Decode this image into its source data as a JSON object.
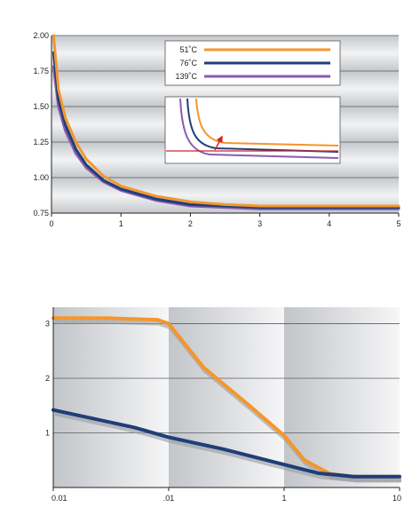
{
  "chart_data": [
    {
      "type": "line",
      "title": "",
      "xlabel": "",
      "ylabel": "",
      "xlim": [
        0,
        5
      ],
      "ylim": [
        0.75,
        2.0
      ],
      "x_ticks": [
        "0",
        "1",
        "2",
        "3",
        "4",
        "5"
      ],
      "y_ticks": [
        "2.00",
        "1.75",
        "1.50",
        "1.25",
        "1.00",
        "0.75"
      ],
      "legend_placement": "top-right",
      "grid": true,
      "series": [
        {
          "name": "51˚C",
          "color": "#F5962A",
          "x": [
            0.03,
            0.1,
            0.2,
            0.35,
            0.5,
            0.75,
            1.0,
            1.5,
            2.0,
            2.5,
            3.0,
            4.0,
            5.0
          ],
          "y": [
            2.0,
            1.62,
            1.42,
            1.25,
            1.13,
            1.01,
            0.94,
            0.87,
            0.83,
            0.81,
            0.8,
            0.8,
            0.8
          ]
        },
        {
          "name": "76˚C",
          "color": "#1F3F7A",
          "x": [
            0.03,
            0.1,
            0.2,
            0.35,
            0.5,
            0.75,
            1.0,
            1.5,
            2.0,
            2.5,
            3.0,
            4.0,
            5.0
          ],
          "y": [
            1.88,
            1.55,
            1.37,
            1.2,
            1.09,
            0.98,
            0.92,
            0.85,
            0.81,
            0.8,
            0.79,
            0.79,
            0.79
          ]
        },
        {
          "name": "139˚C",
          "color": "#8A5BB0",
          "x": [
            0.03,
            0.1,
            0.2,
            0.35,
            0.5,
            0.75,
            1.0,
            1.5,
            2.0,
            2.5,
            3.0,
            4.0,
            5.0
          ],
          "y": [
            1.78,
            1.5,
            1.33,
            1.17,
            1.07,
            0.97,
            0.91,
            0.84,
            0.8,
            0.79,
            0.78,
            0.78,
            0.78
          ]
        }
      ],
      "inset": {
        "placement": "top-right",
        "colors": {
          "reference_line": "#D0252A",
          "arrow": "#D0252A"
        }
      }
    },
    {
      "type": "line",
      "title": "",
      "xlabel": "",
      "ylabel": "",
      "x_scale": "log",
      "xlim": [
        0.01,
        10
      ],
      "ylim": [
        0,
        3.3
      ],
      "x_ticks": [
        "0.01",
        ".01",
        "1",
        "10"
      ],
      "y_ticks": [
        "3",
        "2",
        "1"
      ],
      "grid": true,
      "series": [
        {
          "color": "#F5962A",
          "x": [
            0.01,
            0.03,
            0.08,
            0.1,
            0.2,
            0.5,
            1.0,
            1.5,
            2.5,
            4.0,
            10.0
          ],
          "y": [
            3.1,
            3.1,
            3.07,
            3.0,
            2.2,
            1.5,
            0.95,
            0.5,
            0.25,
            0.2,
            0.2
          ]
        },
        {
          "color": "#1E3E78",
          "x": [
            0.01,
            0.05,
            0.1,
            0.3,
            1.0,
            2.0,
            4.0,
            10.0
          ],
          "y": [
            1.42,
            1.1,
            0.92,
            0.7,
            0.42,
            0.26,
            0.2,
            0.2
          ]
        }
      ]
    }
  ]
}
